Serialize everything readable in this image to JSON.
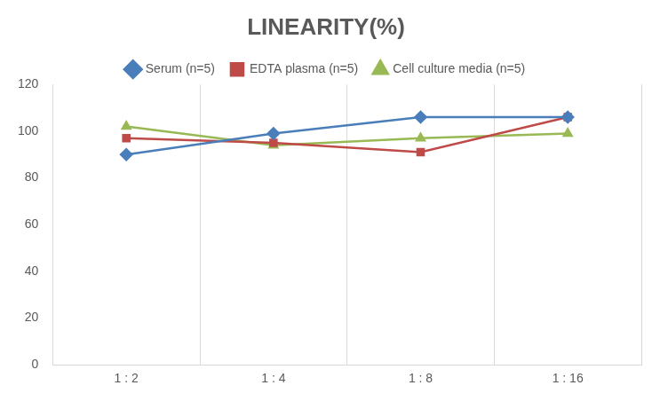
{
  "chart_data": {
    "type": "line",
    "title": "LINEARITY(%)",
    "categories": [
      "1 : 2",
      "1 : 4",
      "1 : 8",
      "1 : 16"
    ],
    "series": [
      {
        "name": "Serum (n=5)",
        "color": "#4a7ebb",
        "marker": "diamond",
        "values": [
          90,
          99,
          106,
          106
        ]
      },
      {
        "name": "EDTA plasma (n=5)",
        "color": "#be4b48",
        "marker": "square",
        "values": [
          97,
          95,
          91,
          106
        ]
      },
      {
        "name": "Cell culture media (n=5)",
        "color": "#98b954",
        "marker": "triangle",
        "values": [
          102,
          94,
          97,
          99
        ]
      }
    ],
    "ylim": [
      0,
      120
    ],
    "yticks": [
      0,
      20,
      40,
      60,
      80,
      100,
      120
    ],
    "grid": true,
    "legend": "top"
  }
}
